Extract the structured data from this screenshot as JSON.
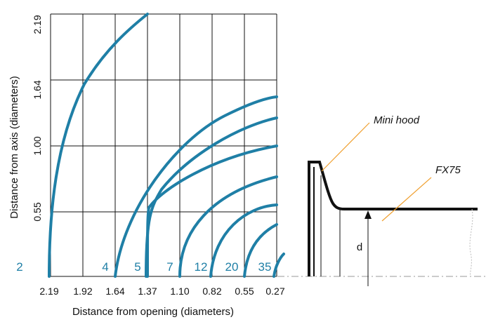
{
  "chart_data": {
    "type": "line",
    "title": "",
    "xlabel": "Distance from opening (diameters)",
    "ylabel": "Distance from axis (diameters)",
    "x_ticks": [
      "2.19",
      "1.92",
      "1.64",
      "1.37",
      "1.10",
      "0.82",
      "0.55",
      "0.27"
    ],
    "y_ticks": [
      "2.19",
      "1.64",
      "1.00",
      "0.55"
    ],
    "grid": true,
    "series_color": "#1f7fa6",
    "contour_labels": [
      "2",
      "4",
      "5",
      "7",
      "12",
      "20",
      "35"
    ]
  },
  "diagram": {
    "callout_hood": "Mini hood",
    "callout_duct": "FX75",
    "dimension_label": "d",
    "callout_line_color": "#f0a030"
  }
}
